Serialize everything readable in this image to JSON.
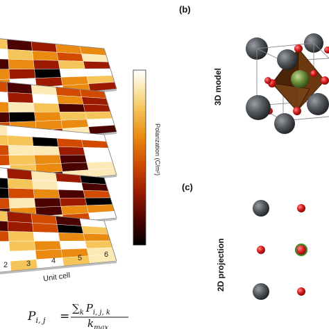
{
  "panels": {
    "b": {
      "label": "(b)"
    },
    "c": {
      "label": "(c)"
    }
  },
  "left_panel": {
    "colorbar_label": "Polarization (C/m²)",
    "axis_label": "Unit cell",
    "axis_ticks": [
      "2",
      "3",
      "4",
      "5",
      "6"
    ],
    "equation": {
      "lhs": "P",
      "lhs_sub": "i, j",
      "equals": "=",
      "num_sum": "∑",
      "num_sum_sub": "k",
      "num_term": "P",
      "num_term_sub": "i, j, k",
      "den": "k",
      "den_sub": "max"
    }
  },
  "right_panel": {
    "model_3d_label": "3D model",
    "projection_2d_label": "2D projection"
  },
  "colors": {
    "grey_atom": "#5a5d62",
    "red_atom": "#d81f1f",
    "green_atom": "#6a8f3a",
    "octahedron": "#5a2e0c",
    "colormap": [
      "#000000",
      "#4a0300",
      "#9b1a00",
      "#d14a00",
      "#eb8a10",
      "#f5c55a",
      "#fce9b5",
      "#ffffff"
    ]
  },
  "chart_data": {
    "type": "heatmap",
    "layers": 5,
    "grid": "6x6",
    "colorbar_label": "Polarization (C/m²)",
    "x_axis_label": "Unit cell",
    "x_ticks": [
      "2",
      "3",
      "4",
      "5",
      "6"
    ]
  }
}
